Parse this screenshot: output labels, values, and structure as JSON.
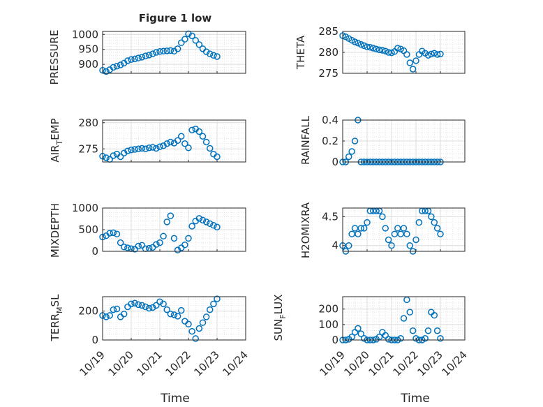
{
  "figure_title": "Figure 1 low",
  "marker_color": "#0072BD",
  "chart_data": [
    {
      "type": "scatter",
      "ylabel": "PRESSURE",
      "title": "Figure 1 low",
      "xlabel": "",
      "xlim": [
        "10/19",
        "10/24"
      ],
      "ylim": [
        870,
        1010
      ],
      "yticks": [
        900,
        950,
        1000
      ],
      "x_ticklabels": [],
      "grid": "on",
      "x": [
        "10/19 00:00",
        "10/19 03:00",
        "10/19 06:00",
        "10/19 09:00",
        "10/19 12:00",
        "10/19 15:00",
        "10/19 18:00",
        "10/19 21:00",
        "10/20 00:00",
        "10/20 03:00",
        "10/20 06:00",
        "10/20 09:00",
        "10/20 12:00",
        "10/20 15:00",
        "10/20 18:00",
        "10/20 21:00",
        "10/21 00:00",
        "10/21 03:00",
        "10/21 06:00",
        "10/21 09:00",
        "10/21 12:00",
        "10/21 15:00",
        "10/21 18:00",
        "10/21 21:00",
        "10/22 00:00",
        "10/22 03:00",
        "10/22 06:00",
        "10/22 09:00",
        "10/22 12:00",
        "10/22 15:00",
        "10/22 18:00",
        "10/22 21:00",
        "10/23 00:00"
      ],
      "y": [
        880,
        876,
        882,
        890,
        894,
        898,
        904,
        912,
        916,
        918,
        921,
        924,
        928,
        931,
        935,
        940,
        943,
        944,
        945,
        946,
        944,
        952,
        972,
        984,
        1002,
        995,
        980,
        966,
        952,
        942,
        935,
        930,
        926
      ]
    },
    {
      "type": "scatter",
      "ylabel": "THETA",
      "xlabel": "",
      "xlim": [
        "10/19",
        "10/24"
      ],
      "ylim": [
        275,
        285
      ],
      "yticks": [
        275,
        280,
        285
      ],
      "x_ticklabels": [],
      "grid": "on",
      "x": [
        "10/19 00:00",
        "10/19 03:00",
        "10/19 06:00",
        "10/19 09:00",
        "10/19 12:00",
        "10/19 15:00",
        "10/19 18:00",
        "10/19 21:00",
        "10/20 00:00",
        "10/20 03:00",
        "10/20 06:00",
        "10/20 09:00",
        "10/20 12:00",
        "10/20 15:00",
        "10/20 18:00",
        "10/20 21:00",
        "10/21 00:00",
        "10/21 03:00",
        "10/21 06:00",
        "10/21 09:00",
        "10/21 12:00",
        "10/21 15:00",
        "10/21 18:00",
        "10/21 21:00",
        "10/22 00:00",
        "10/22 03:00",
        "10/22 06:00",
        "10/22 09:00",
        "10/22 12:00",
        "10/22 15:00",
        "10/22 18:00",
        "10/22 21:00",
        "10/23 00:00"
      ],
      "y": [
        284,
        283.7,
        283.3,
        282.9,
        282.5,
        282.2,
        281.9,
        281.6,
        281.3,
        281.2,
        281.0,
        280.8,
        280.6,
        280.5,
        280.3,
        280.0,
        279.9,
        280.2,
        281.0,
        280.8,
        280.4,
        279.5,
        277.5,
        276.0,
        278.0,
        279.5,
        280.3,
        279.8,
        279.3,
        279.6,
        279.8,
        279.5,
        279.6
      ]
    },
    {
      "type": "scatter",
      "ylabel": "AIR_TEMP",
      "xlabel": "",
      "xlim": [
        "10/19",
        "10/24"
      ],
      "ylim": [
        272.5,
        280.5
      ],
      "yticks": [
        275,
        280
      ],
      "x_ticklabels": [],
      "grid": "on",
      "x": [
        "10/19 00:00",
        "10/19 03:00",
        "10/19 06:00",
        "10/19 09:00",
        "10/19 12:00",
        "10/19 15:00",
        "10/19 18:00",
        "10/19 21:00",
        "10/20 00:00",
        "10/20 03:00",
        "10/20 06:00",
        "10/20 09:00",
        "10/20 12:00",
        "10/20 15:00",
        "10/20 18:00",
        "10/20 21:00",
        "10/21 00:00",
        "10/21 03:00",
        "10/21 06:00",
        "10/21 09:00",
        "10/21 12:00",
        "10/21 15:00",
        "10/21 18:00",
        "10/21 21:00",
        "10/22 00:00",
        "10/22 03:00",
        "10/22 06:00",
        "10/22 09:00",
        "10/22 12:00",
        "10/22 15:00",
        "10/22 18:00",
        "10/22 21:00",
        "10/23 00:00"
      ],
      "y": [
        273.6,
        273.3,
        273.0,
        273.7,
        274.0,
        273.5,
        274.2,
        274.6,
        274.8,
        274.9,
        275.0,
        275.1,
        275.0,
        275.2,
        275.3,
        275.1,
        275.4,
        275.6,
        276.0,
        276.3,
        276.1,
        276.6,
        277.4,
        276.0,
        275.2,
        278.6,
        278.8,
        278.3,
        277.4,
        276.3,
        275.1,
        274.0,
        273.5
      ]
    },
    {
      "type": "scatter",
      "ylabel": "RAINFALL",
      "xlabel": "",
      "xlim": [
        "10/19",
        "10/24"
      ],
      "ylim": [
        0,
        0.4
      ],
      "yticks": [
        0,
        0.2,
        0.4
      ],
      "x_ticklabels": [],
      "grid": "on",
      "x": [
        "10/19 00:00",
        "10/19 03:00",
        "10/19 06:00",
        "10/19 09:00",
        "10/19 12:00",
        "10/19 15:00",
        "10/19 18:00",
        "10/19 21:00",
        "10/20 00:00",
        "10/20 03:00",
        "10/20 06:00",
        "10/20 09:00",
        "10/20 12:00",
        "10/20 15:00",
        "10/20 18:00",
        "10/20 21:00",
        "10/21 00:00",
        "10/21 03:00",
        "10/21 06:00",
        "10/21 09:00",
        "10/21 12:00",
        "10/21 15:00",
        "10/21 18:00",
        "10/21 21:00",
        "10/22 00:00",
        "10/22 03:00",
        "10/22 06:00",
        "10/22 09:00",
        "10/22 12:00",
        "10/22 15:00",
        "10/22 18:00",
        "10/22 21:00",
        "10/23 00:00"
      ],
      "y": [
        0,
        0,
        0.05,
        0.1,
        0.2,
        0.4,
        0,
        0,
        0,
        0,
        0,
        0,
        0,
        0,
        0,
        0,
        0,
        0,
        0,
        0,
        0,
        0,
        0,
        0,
        0,
        0,
        0,
        0,
        0,
        0,
        0,
        0,
        0
      ]
    },
    {
      "type": "scatter",
      "ylabel": "MIXDEPTH",
      "xlabel": "",
      "xlim": [
        "10/19",
        "10/24"
      ],
      "ylim": [
        0,
        1000
      ],
      "yticks": [
        0,
        500,
        1000
      ],
      "x_ticklabels": [],
      "grid": "on",
      "x": [
        "10/19 00:00",
        "10/19 03:00",
        "10/19 06:00",
        "10/19 09:00",
        "10/19 12:00",
        "10/19 15:00",
        "10/19 18:00",
        "10/19 21:00",
        "10/20 00:00",
        "10/20 03:00",
        "10/20 06:00",
        "10/20 09:00",
        "10/20 12:00",
        "10/20 15:00",
        "10/20 18:00",
        "10/20 21:00",
        "10/21 00:00",
        "10/21 03:00",
        "10/21 06:00",
        "10/21 09:00",
        "10/21 12:00",
        "10/21 15:00",
        "10/21 18:00",
        "10/21 21:00",
        "10/22 00:00",
        "10/22 03:00",
        "10/22 06:00",
        "10/22 09:00",
        "10/22 12:00",
        "10/22 15:00",
        "10/22 18:00",
        "10/22 21:00",
        "10/23 00:00"
      ],
      "y": [
        330,
        360,
        420,
        430,
        400,
        200,
        100,
        80,
        60,
        50,
        120,
        140,
        60,
        70,
        90,
        160,
        200,
        350,
        680,
        820,
        300,
        30,
        80,
        150,
        300,
        580,
        700,
        760,
        720,
        680,
        640,
        600,
        560
      ]
    },
    {
      "type": "scatter",
      "ylabel": "H2OMIXRA",
      "xlabel": "",
      "xlim": [
        "10/19",
        "10/24"
      ],
      "ylim": [
        3.9,
        4.65
      ],
      "yticks": [
        4,
        4.5
      ],
      "x_ticklabels": [],
      "grid": "on",
      "x": [
        "10/19 00:00",
        "10/19 03:00",
        "10/19 06:00",
        "10/19 09:00",
        "10/19 12:00",
        "10/19 15:00",
        "10/19 18:00",
        "10/19 21:00",
        "10/20 00:00",
        "10/20 03:00",
        "10/20 06:00",
        "10/20 09:00",
        "10/20 12:00",
        "10/20 15:00",
        "10/20 18:00",
        "10/20 21:00",
        "10/21 00:00",
        "10/21 03:00",
        "10/21 06:00",
        "10/21 09:00",
        "10/21 12:00",
        "10/21 15:00",
        "10/21 18:00",
        "10/21 21:00",
        "10/22 00:00",
        "10/22 03:00",
        "10/22 06:00",
        "10/22 09:00",
        "10/22 12:00",
        "10/22 15:00",
        "10/22 18:00",
        "10/22 21:00",
        "10/23 00:00"
      ],
      "y": [
        4.0,
        3.9,
        4.0,
        4.2,
        4.3,
        4.2,
        4.3,
        4.3,
        4.4,
        4.6,
        4.6,
        4.6,
        4.6,
        4.5,
        4.3,
        4.1,
        4.0,
        4.2,
        4.3,
        4.2,
        4.3,
        4.2,
        4.0,
        3.9,
        4.1,
        4.4,
        4.6,
        4.6,
        4.6,
        4.5,
        4.4,
        4.3,
        4.2
      ]
    },
    {
      "type": "scatter",
      "ylabel": "TERR_MSL",
      "xlabel": "Time",
      "xlim": [
        "10/19",
        "10/24"
      ],
      "ylim": [
        0,
        300
      ],
      "yticks": [
        0,
        200
      ],
      "x_ticklabels": [
        "10/19",
        "10/20",
        "10/21",
        "10/22",
        "10/23",
        "10/24"
      ],
      "grid": "on",
      "x": [
        "10/19 00:00",
        "10/19 03:00",
        "10/19 06:00",
        "10/19 09:00",
        "10/19 12:00",
        "10/19 15:00",
        "10/19 18:00",
        "10/19 21:00",
        "10/20 00:00",
        "10/20 03:00",
        "10/20 06:00",
        "10/20 09:00",
        "10/20 12:00",
        "10/20 15:00",
        "10/20 18:00",
        "10/20 21:00",
        "10/21 00:00",
        "10/21 03:00",
        "10/21 06:00",
        "10/21 09:00",
        "10/21 12:00",
        "10/21 15:00",
        "10/21 18:00",
        "10/21 21:00",
        "10/22 00:00",
        "10/22 03:00",
        "10/22 06:00",
        "10/22 09:00",
        "10/22 12:00",
        "10/22 15:00",
        "10/22 18:00",
        "10/22 21:00",
        "10/23 00:00"
      ],
      "y": [
        170,
        160,
        170,
        210,
        215,
        160,
        180,
        230,
        250,
        255,
        245,
        240,
        230,
        220,
        225,
        240,
        265,
        250,
        210,
        180,
        175,
        165,
        205,
        130,
        110,
        60,
        10,
        80,
        120,
        160,
        210,
        250,
        285
      ]
    },
    {
      "type": "scatter",
      "ylabel": "SUN_FLUX",
      "xlabel": "Time",
      "xlim": [
        "10/19",
        "10/24"
      ],
      "ylim": [
        0,
        280
      ],
      "yticks": [
        0,
        100,
        200
      ],
      "x_ticklabels": [
        "10/19",
        "10/20",
        "10/21",
        "10/22",
        "10/23",
        "10/24"
      ],
      "grid": "on",
      "x": [
        "10/19 00:00",
        "10/19 03:00",
        "10/19 06:00",
        "10/19 09:00",
        "10/19 12:00",
        "10/19 15:00",
        "10/19 18:00",
        "10/19 21:00",
        "10/20 00:00",
        "10/20 03:00",
        "10/20 06:00",
        "10/20 09:00",
        "10/20 12:00",
        "10/20 15:00",
        "10/20 18:00",
        "10/20 21:00",
        "10/21 00:00",
        "10/21 03:00",
        "10/21 06:00",
        "10/21 09:00",
        "10/21 12:00",
        "10/21 15:00",
        "10/21 18:00",
        "10/21 21:00",
        "10/22 00:00",
        "10/22 03:00",
        "10/22 06:00",
        "10/22 09:00",
        "10/22 12:00",
        "10/22 15:00",
        "10/22 18:00",
        "10/22 21:00",
        "10/23 00:00"
      ],
      "y": [
        0,
        0,
        5,
        20,
        50,
        75,
        40,
        10,
        0,
        0,
        0,
        5,
        20,
        50,
        30,
        5,
        0,
        0,
        0,
        10,
        140,
        260,
        180,
        60,
        10,
        0,
        0,
        10,
        60,
        180,
        160,
        60,
        10
      ]
    }
  ]
}
